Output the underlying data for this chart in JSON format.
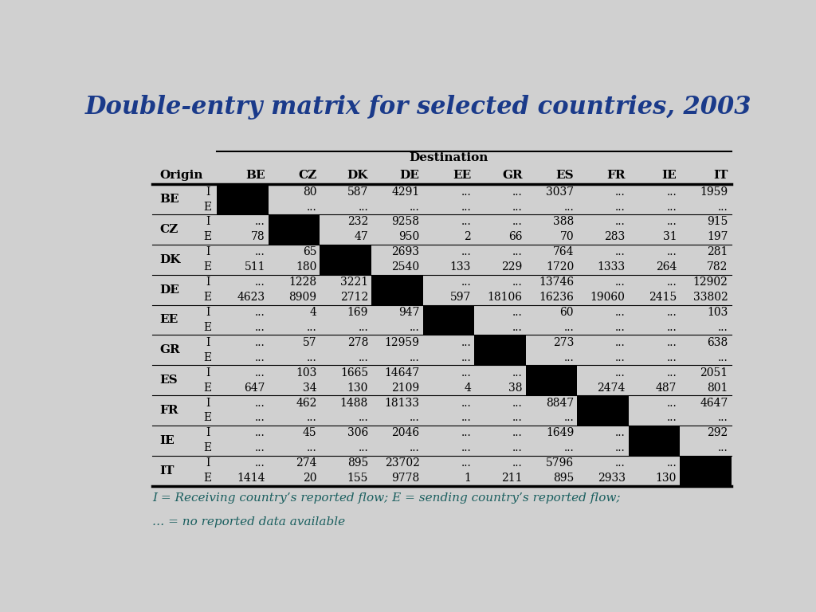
{
  "title": "Double-entry matrix for selected countries, 2003",
  "title_color": "#1a3a8a",
  "background_color": "#d0d0d0",
  "destination_label": "Destination",
  "col_headers": [
    "BE",
    "CZ",
    "DK",
    "DE",
    "EE",
    "GR",
    "ES",
    "FR",
    "IE",
    "IT"
  ],
  "row_headers": [
    "BE",
    "CZ",
    "DK",
    "DE",
    "EE",
    "GR",
    "ES",
    "FR",
    "IE",
    "IT"
  ],
  "footnote_line1": "I = Receiving country’s reported flow; E = sending country’s reported flow;",
  "footnote_line2": "… = no reported data available",
  "footnote_color": "#1a5f5f",
  "rows": [
    {
      "origin": "BE",
      "I": [
        "",
        "80",
        "587",
        "4291",
        "...",
        "...",
        "3037",
        "...",
        "...",
        "1959"
      ],
      "E": [
        "",
        "...",
        "...",
        "...",
        "...",
        "...",
        "...",
        "...",
        "...",
        "..."
      ]
    },
    {
      "origin": "CZ",
      "I": [
        "...",
        "",
        "232",
        "9258",
        "...",
        "...",
        "388",
        "...",
        "...",
        "915"
      ],
      "E": [
        "78",
        "",
        "47",
        "950",
        "2",
        "66",
        "70",
        "283",
        "31",
        "197"
      ]
    },
    {
      "origin": "DK",
      "I": [
        "...",
        "65",
        "",
        "2693",
        "...",
        "...",
        "764",
        "...",
        "...",
        "281"
      ],
      "E": [
        "511",
        "180",
        "",
        "2540",
        "133",
        "229",
        "1720",
        "1333",
        "264",
        "782"
      ]
    },
    {
      "origin": "DE",
      "I": [
        "...",
        "1228",
        "3221",
        "",
        "...",
        "...",
        "13746",
        "...",
        "...",
        "12902"
      ],
      "E": [
        "4623",
        "8909",
        "2712",
        "",
        "597",
        "18106",
        "16236",
        "19060",
        "2415",
        "33802"
      ]
    },
    {
      "origin": "EE",
      "I": [
        "...",
        "4",
        "169",
        "947",
        "",
        "...",
        "60",
        "...",
        "...",
        "103"
      ],
      "E": [
        "...",
        "...",
        "...",
        "...",
        "",
        "...",
        "...",
        "...",
        "...",
        "..."
      ]
    },
    {
      "origin": "GR",
      "I": [
        "...",
        "57",
        "278",
        "12959",
        "...",
        "",
        "273",
        "...",
        "...",
        "638"
      ],
      "E": [
        "...",
        "...",
        "...",
        "...",
        "...",
        "",
        "...",
        "...",
        "...",
        "..."
      ]
    },
    {
      "origin": "ES",
      "I": [
        "...",
        "103",
        "1665",
        "14647",
        "...",
        "...",
        "",
        "...",
        "...",
        "2051"
      ],
      "E": [
        "647",
        "34",
        "130",
        "2109",
        "4",
        "38",
        "",
        "2474",
        "487",
        "801"
      ]
    },
    {
      "origin": "FR",
      "I": [
        "...",
        "462",
        "1488",
        "18133",
        "...",
        "...",
        "8847",
        "",
        "...",
        "4647"
      ],
      "E": [
        "...",
        "...",
        "...",
        "...",
        "...",
        "...",
        "...",
        "",
        "...",
        "..."
      ]
    },
    {
      "origin": "IE",
      "I": [
        "...",
        "45",
        "306",
        "2046",
        "...",
        "...",
        "1649",
        "...",
        "",
        "292"
      ],
      "E": [
        "...",
        "...",
        "...",
        "...",
        "...",
        "...",
        "...",
        "...",
        "",
        "..."
      ]
    },
    {
      "origin": "IT",
      "I": [
        "...",
        "274",
        "895",
        "23702",
        "...",
        "...",
        "5796",
        "...",
        "...",
        ""
      ],
      "E": [
        "1414",
        "20",
        "155",
        "9778",
        "1",
        "211",
        "895",
        "2933",
        "130",
        ""
      ]
    }
  ]
}
